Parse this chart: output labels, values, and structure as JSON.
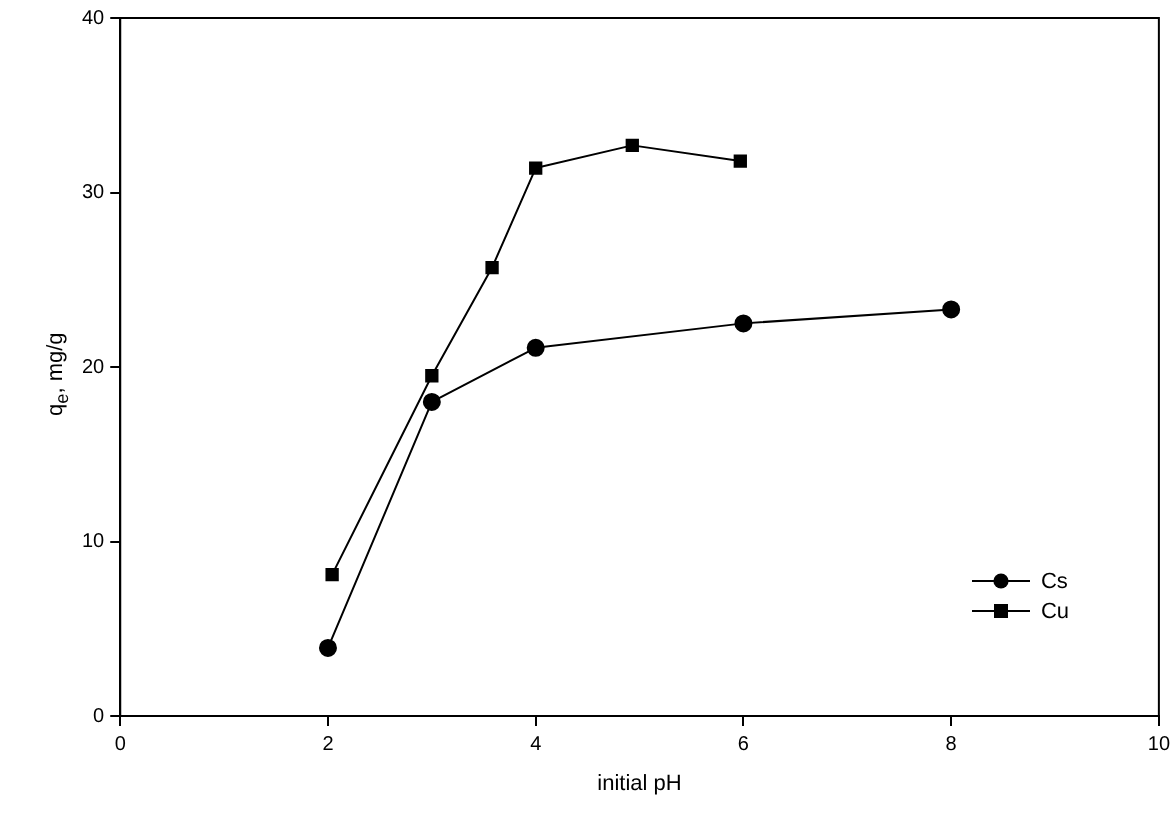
{
  "chart_data": {
    "type": "line",
    "xlabel": "initial pH",
    "ylabel": "q$_{e}$, mg/g",
    "xlim": [
      0,
      10
    ],
    "xticks": [
      0,
      2,
      4,
      6,
      8,
      10
    ],
    "ylim": [
      0,
      40
    ],
    "yticks": [
      0,
      10,
      20,
      30,
      40
    ],
    "grid": false,
    "legend": "bottom right",
    "line_style": "solid",
    "series": [
      {
        "name": "Cs",
        "color": "#000000",
        "marker": "circle",
        "x": [
          2,
          3,
          4,
          6,
          8
        ],
        "values": [
          3.9,
          18.0,
          21.1,
          22.5,
          23.3
        ]
      },
      {
        "name": "Cu",
        "color": "#000000",
        "marker": "square",
        "x": [
          2.04,
          3,
          3.58,
          4,
          4.93,
          5.97
        ],
        "values": [
          8.1,
          19.5,
          25.7,
          31.4,
          32.7,
          31.8
        ]
      }
    ]
  }
}
